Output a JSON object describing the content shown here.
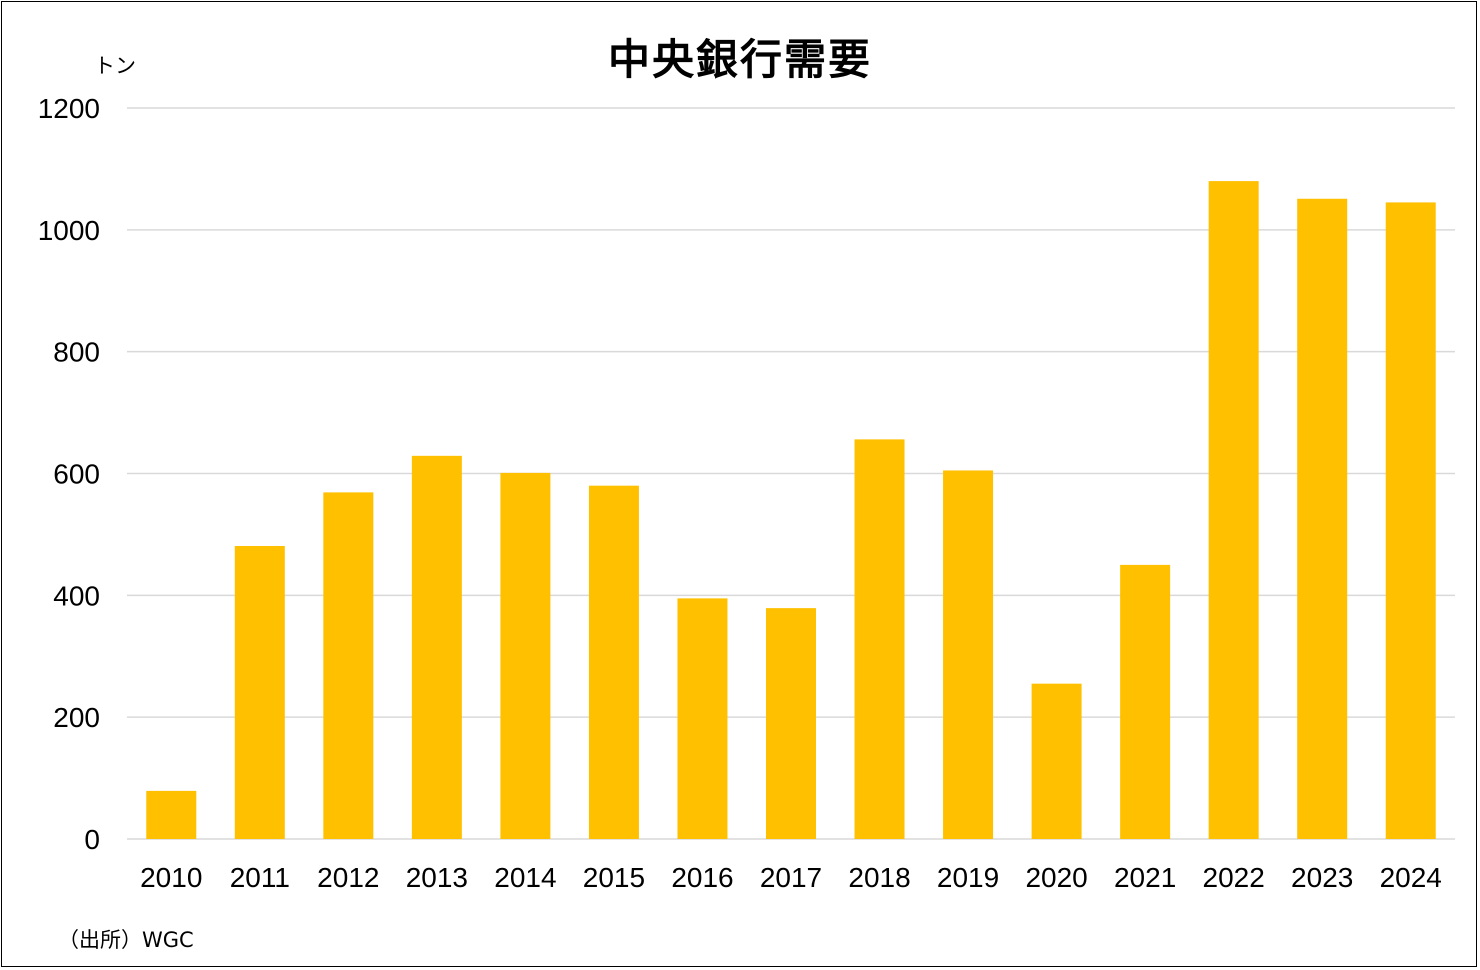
{
  "chart_data": {
    "type": "bar",
    "title": "中央銀行需要",
    "ylabel": "トン",
    "xlabel": "",
    "ylim": [
      0,
      1200
    ],
    "yticks": [
      0,
      200,
      400,
      600,
      800,
      1000,
      1200
    ],
    "categories": [
      "2010",
      "2011",
      "2012",
      "2013",
      "2014",
      "2015",
      "2016",
      "2017",
      "2018",
      "2019",
      "2020",
      "2021",
      "2022",
      "2023",
      "2024"
    ],
    "values": [
      79,
      481,
      569,
      629,
      601,
      580,
      395,
      379,
      656,
      605,
      255,
      450,
      1080,
      1051,
      1045
    ],
    "bar_color": "#FFC000",
    "grid": true,
    "legend": "none"
  },
  "source": "（出所）WGC"
}
